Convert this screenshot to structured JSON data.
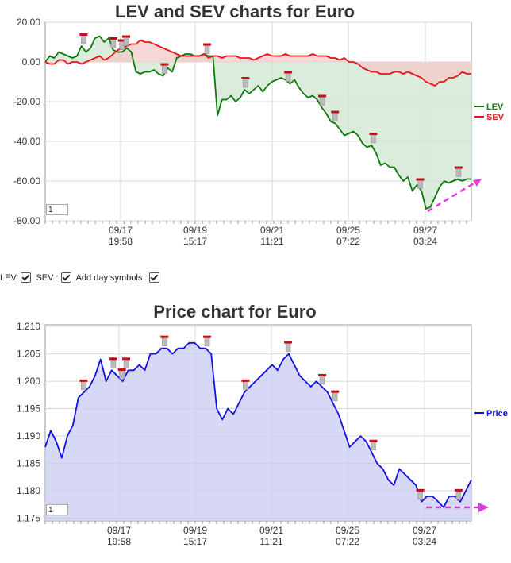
{
  "chart_data": [
    {
      "type": "line",
      "title": "LEV and SEV charts for Euro",
      "x_ticks": [
        "09/17\n19:58",
        "09/19\n15:17",
        "09/21\n11:21",
        "09/25\n07:22",
        "09/27\n03:24"
      ],
      "y_ticks": [
        "20.00",
        "0.00",
        "-20.00",
        "-40.00",
        "-60.00",
        "-80.00"
      ],
      "ylim": [
        -80,
        20
      ],
      "grid": true,
      "legend_position": "right",
      "series": [
        {
          "name": "LEV",
          "color": "#0a7a0a",
          "fill": "#cfe6d0",
          "values": [
            0,
            3,
            2,
            5,
            4,
            3,
            2,
            3,
            8,
            5,
            7,
            12,
            13,
            10,
            12,
            6,
            5,
            5,
            7,
            5,
            -5,
            -6,
            -5,
            -5,
            -4,
            -6,
            -7,
            -3,
            -5,
            2,
            3,
            4,
            4,
            3,
            3,
            4,
            3,
            3,
            -27,
            -19,
            -19,
            -17,
            -20,
            -18,
            -14,
            -16,
            -14,
            -12,
            -15,
            -12,
            -10,
            -9,
            -8,
            -9,
            -11,
            -9,
            -13,
            -16,
            -18,
            -17,
            -19,
            -23,
            -26,
            -30,
            -31,
            -34,
            -37,
            -36,
            -35,
            -37,
            -41,
            -43,
            -42,
            -46,
            -52,
            -51,
            -53,
            -53,
            -57,
            -60,
            -58,
            -65,
            -62,
            -65,
            -74,
            -73,
            -68,
            -63,
            -60,
            -61,
            -60,
            -59,
            -60,
            -59,
            -59
          ]
        },
        {
          "name": "SEV",
          "color": "#e8161b",
          "fill": "#f3c9c9",
          "values": [
            0,
            -1,
            -1,
            1,
            1,
            -1,
            0,
            0,
            -1,
            0,
            1,
            2,
            3,
            1,
            2,
            4,
            6,
            7,
            8,
            9,
            9,
            11,
            10,
            10,
            9,
            8,
            7,
            6,
            5,
            4,
            3,
            3,
            3,
            3,
            3,
            4,
            2,
            3,
            3,
            2,
            3,
            3,
            3,
            2,
            2,
            2,
            1,
            2,
            3,
            4,
            3,
            3,
            3,
            4,
            3,
            3,
            3,
            3,
            3,
            4,
            3,
            3,
            3,
            2,
            2,
            1,
            2,
            0,
            0,
            -1,
            -3,
            -4,
            -5,
            -5,
            -6,
            -6,
            -6,
            -5,
            -5,
            -6,
            -5,
            -6,
            -7,
            -8,
            -10,
            -11,
            -12,
            -10,
            -10,
            -8,
            -8,
            -7,
            -5,
            -6,
            -6
          ]
        }
      ],
      "markers_x": [
        0.09,
        0.16,
        0.18,
        0.19,
        0.28,
        0.38,
        0.47,
        0.57,
        0.65,
        0.68,
        0.77,
        0.88,
        0.97
      ]
    },
    {
      "type": "area",
      "title": "Price chart for Euro",
      "x_ticks": [
        "09/17\n19:58",
        "09/19\n15:17",
        "09/21\n11:21",
        "09/25\n07:22",
        "09/27\n03:24"
      ],
      "y_ticks": [
        "1.210",
        "1.205",
        "1.200",
        "1.195",
        "1.190",
        "1.185",
        "1.180",
        "1.175"
      ],
      "ylim": [
        1.1745,
        1.2103
      ],
      "grid": true,
      "legend_position": "right",
      "series": [
        {
          "name": "Price",
          "color": "#1010e0",
          "fill": "#c9caf3",
          "values": [
            1.188,
            1.191,
            1.189,
            1.186,
            1.19,
            1.192,
            1.197,
            1.198,
            1.199,
            1.201,
            1.204,
            1.2,
            1.202,
            1.201,
            1.2,
            1.202,
            1.202,
            1.203,
            1.202,
            1.205,
            1.205,
            1.206,
            1.206,
            1.205,
            1.206,
            1.206,
            1.207,
            1.207,
            1.206,
            1.206,
            1.205,
            1.195,
            1.193,
            1.195,
            1.194,
            1.196,
            1.198,
            1.199,
            1.2,
            1.201,
            1.202,
            1.203,
            1.202,
            1.204,
            1.205,
            1.203,
            1.201,
            1.2,
            1.199,
            1.2,
            1.199,
            1.198,
            1.196,
            1.194,
            1.191,
            1.188,
            1.189,
            1.19,
            1.189,
            1.187,
            1.185,
            1.184,
            1.182,
            1.181,
            1.184,
            1.183,
            1.182,
            1.181,
            1.178,
            1.179,
            1.179,
            1.178,
            1.177,
            1.179,
            1.179,
            1.178,
            1.18,
            1.182
          ]
        }
      ],
      "markers_x": [
        0.09,
        0.16,
        0.18,
        0.19,
        0.28,
        0.38,
        0.47,
        0.57,
        0.65,
        0.68,
        0.77,
        0.88,
        0.97
      ]
    }
  ],
  "zoom_value_top": "1",
  "zoom_value_bottom": "1",
  "controls": {
    "lev_label": "LEV:",
    "sev_label": "SEV :",
    "day_label": "Add day symbols :"
  }
}
